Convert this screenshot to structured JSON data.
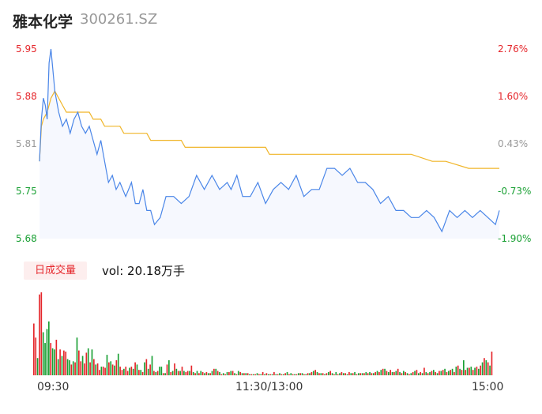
{
  "header": {
    "name": "雅本化学",
    "code": "300261.SZ"
  },
  "colors": {
    "up": "#e5262b",
    "down": "#1aa034",
    "neutral": "#999999",
    "price_line": "#4a86e8",
    "avg_line": "#f0b528"
  },
  "volume": {
    "tag": "日成交量",
    "summary": "vol: 20.18万手"
  },
  "chart_data": {
    "type": "line",
    "title": "",
    "prev_close": 5.79,
    "ylim": [
      5.68,
      5.95
    ],
    "price_ticks": [
      "5.95",
      "5.88",
      "5.81",
      "5.75",
      "5.68"
    ],
    "pct_ticks": [
      "2.76%",
      "1.60%",
      "0.43%",
      "-0.73%",
      "-1.90%"
    ],
    "tick_colors": [
      "up",
      "up",
      "neutral",
      "down",
      "down"
    ],
    "x_ticks": [
      "09:30",
      "11:30/13:00",
      "15:00"
    ],
    "series": [
      {
        "kind": "price",
        "x": [
          0,
          1,
          2,
          3,
          4,
          5,
          6,
          8,
          10,
          12,
          14,
          16,
          18,
          20,
          22,
          24,
          26,
          28,
          30,
          32,
          34,
          36,
          38,
          40,
          42,
          45,
          48,
          50,
          52,
          54,
          56,
          58,
          60,
          63,
          66,
          70,
          74,
          78,
          82,
          86,
          90,
          94,
          98,
          100,
          103,
          106,
          110,
          114,
          118,
          122,
          126,
          130,
          134,
          138,
          142,
          146,
          150,
          154,
          158,
          162,
          166,
          170,
          174,
          178,
          182,
          186,
          190,
          194,
          198,
          202,
          206,
          210,
          214,
          218,
          222,
          226,
          230,
          234,
          238,
          240
        ],
        "y": [
          5.79,
          5.85,
          5.88,
          5.87,
          5.85,
          5.93,
          5.95,
          5.89,
          5.86,
          5.84,
          5.85,
          5.83,
          5.85,
          5.86,
          5.84,
          5.83,
          5.84,
          5.82,
          5.8,
          5.82,
          5.79,
          5.76,
          5.77,
          5.75,
          5.76,
          5.74,
          5.76,
          5.73,
          5.73,
          5.75,
          5.72,
          5.72,
          5.7,
          5.71,
          5.74,
          5.74,
          5.73,
          5.74,
          5.77,
          5.75,
          5.77,
          5.75,
          5.76,
          5.75,
          5.77,
          5.74,
          5.74,
          5.76,
          5.73,
          5.75,
          5.76,
          5.75,
          5.77,
          5.74,
          5.75,
          5.75,
          5.78,
          5.78,
          5.77,
          5.78,
          5.76,
          5.76,
          5.75,
          5.73,
          5.74,
          5.72,
          5.72,
          5.71,
          5.71,
          5.72,
          5.71,
          5.69,
          5.72,
          5.71,
          5.72,
          5.71,
          5.72,
          5.71,
          5.7,
          5.72
        ]
      },
      {
        "kind": "average",
        "x": [
          0,
          1,
          2,
          4,
          6,
          8,
          12,
          14,
          16,
          26,
          28,
          32,
          34,
          42,
          44,
          56,
          58,
          74,
          76,
          118,
          120,
          140,
          172,
          194,
          205,
          212,
          224,
          240
        ],
        "y": [
          5.79,
          5.84,
          5.85,
          5.86,
          5.88,
          5.89,
          5.87,
          5.86,
          5.86,
          5.86,
          5.85,
          5.85,
          5.84,
          5.84,
          5.83,
          5.83,
          5.82,
          5.82,
          5.81,
          5.81,
          5.8,
          5.8,
          5.8,
          5.8,
          5.79,
          5.79,
          5.78,
          5.78
        ]
      }
    ],
    "volume": {
      "values": [
        48,
        35,
        16,
        75,
        77,
        40,
        30,
        43,
        50,
        30,
        25,
        24,
        33,
        15,
        24,
        18,
        23,
        22,
        15,
        14,
        10,
        13,
        12,
        35,
        23,
        13,
        18,
        11,
        21,
        25,
        12,
        24,
        15,
        10,
        11,
        5,
        8,
        8,
        7,
        19,
        12,
        13,
        10,
        9,
        14,
        20,
        8,
        5,
        6,
        8,
        4,
        7,
        8,
        6,
        12,
        10,
        5,
        5,
        3,
        12,
        15,
        6,
        10,
        18,
        4,
        3,
        4,
        8,
        8,
        2,
        2,
        10,
        14,
        3,
        4,
        11,
        6,
        4,
        4,
        8,
        4,
        3,
        4,
        4,
        9,
        3,
        2,
        4,
        2,
        4,
        3,
        2,
        3,
        2,
        2,
        4,
        6,
        6,
        4,
        3,
        1,
        2,
        1,
        3,
        3,
        4,
        4,
        2,
        1,
        4,
        3,
        2,
        2,
        2,
        2,
        1,
        1,
        1,
        1,
        2,
        1,
        1,
        3,
        1,
        2,
        1,
        1,
        1,
        3,
        1,
        1,
        2,
        1,
        1,
        2,
        3,
        1,
        2,
        1,
        1,
        1,
        2,
        2,
        2,
        1,
        1,
        2,
        2,
        3,
        4,
        5,
        3,
        2,
        2,
        2,
        1,
        2,
        3,
        4,
        2,
        1,
        3,
        1,
        2,
        3,
        2,
        2,
        1,
        3,
        2,
        2,
        3,
        1,
        2,
        2,
        2,
        2,
        3,
        2,
        3,
        2,
        2,
        3,
        4,
        3,
        5,
        6,
        6,
        4,
        3,
        5,
        3,
        3,
        4,
        6,
        3,
        2,
        4,
        3,
        2,
        1,
        2,
        3,
        4,
        5,
        2,
        3,
        2,
        7,
        3,
        2,
        3,
        4,
        5,
        3,
        2,
        4,
        4,
        5,
        6,
        3,
        4,
        5,
        6,
        3,
        8,
        9,
        6,
        5,
        14,
        5,
        7,
        7,
        8,
        5,
        7,
        8,
        6,
        9,
        12,
        16,
        14,
        12,
        9,
        22
      ],
      "colors": [
        "up",
        "up",
        "down",
        "up",
        "up",
        "down",
        "down",
        "down",
        "down",
        "up",
        "down",
        "down",
        "up",
        "down",
        "up",
        "down",
        "up",
        "up",
        "down",
        "down",
        "up",
        "down",
        "up",
        "down",
        "up",
        "up",
        "down",
        "up",
        "up",
        "down",
        "up",
        "down",
        "up",
        "down",
        "up",
        "up",
        "down",
        "up",
        "up",
        "down",
        "up",
        "down",
        "up",
        "down",
        "up",
        "down",
        "up",
        "up",
        "down",
        "up",
        "up",
        "down",
        "up",
        "down",
        "up",
        "down",
        "up",
        "down",
        "up",
        "down",
        "up",
        "down",
        "up",
        "down",
        "up",
        "down",
        "up",
        "down",
        "down",
        "up",
        "down",
        "up",
        "down",
        "up",
        "down",
        "up",
        "down",
        "up",
        "down",
        "up",
        "down",
        "up",
        "up",
        "down",
        "up",
        "down",
        "up",
        "down",
        "up",
        "down",
        "up",
        "down",
        "up",
        "down",
        "up",
        "down",
        "up",
        "down",
        "up",
        "down",
        "up",
        "down",
        "up",
        "down",
        "up",
        "down",
        "up",
        "down",
        "up",
        "down",
        "up",
        "down",
        "up",
        "down",
        "up",
        "down",
        "up",
        "down",
        "up",
        "down",
        "up",
        "down",
        "up",
        "down",
        "up",
        "down",
        "up",
        "down",
        "up",
        "down",
        "up",
        "down",
        "up",
        "down",
        "up",
        "down",
        "up",
        "down",
        "up",
        "down",
        "up",
        "down",
        "up",
        "down",
        "up",
        "down",
        "up",
        "down",
        "up",
        "down",
        "up",
        "down",
        "up",
        "down",
        "up",
        "down",
        "up",
        "down",
        "up",
        "down",
        "up",
        "down",
        "up",
        "down",
        "up",
        "down",
        "up",
        "down",
        "up",
        "down",
        "up",
        "down",
        "up",
        "down",
        "up",
        "down",
        "up",
        "down",
        "up",
        "down",
        "up",
        "down",
        "up",
        "down",
        "up",
        "down",
        "up",
        "down",
        "up",
        "down",
        "up",
        "down",
        "up",
        "down",
        "up",
        "down",
        "up",
        "down",
        "up",
        "down",
        "up",
        "down",
        "up",
        "down",
        "up",
        "down",
        "up",
        "down",
        "up",
        "down",
        "up",
        "down",
        "up",
        "down",
        "up",
        "down",
        "up",
        "down",
        "up",
        "down",
        "up",
        "down",
        "up",
        "down",
        "up",
        "down",
        "up",
        "down",
        "up",
        "down",
        "up",
        "down",
        "up",
        "down",
        "up",
        "down",
        "up",
        "down",
        "up",
        "down",
        "up",
        "down",
        "up",
        "down",
        "up",
        "down",
        "up",
        "down",
        "up"
      ]
    }
  }
}
